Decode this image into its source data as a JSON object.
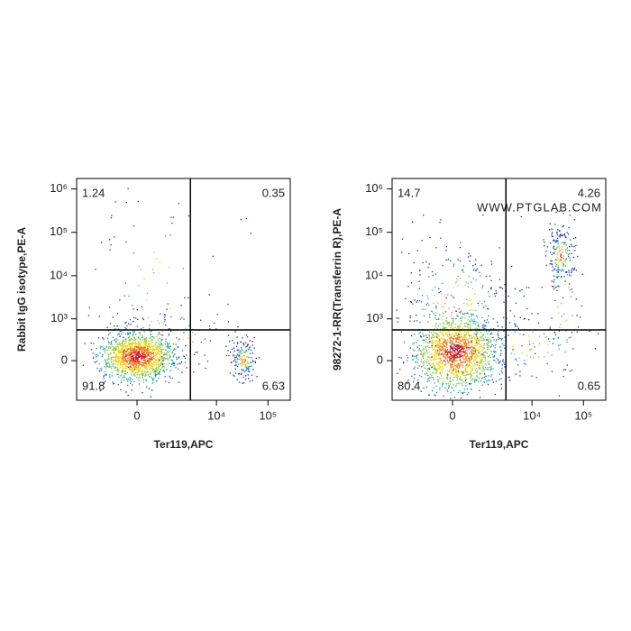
{
  "chart_data": [
    {
      "type": "scatter",
      "xlabel": "Ter119,APC",
      "ylabel": "Rabbit IgG isotype,PE-A",
      "xlim": [
        -4260,
        271000
      ],
      "ylim": [
        -885,
        1740000
      ],
      "xticks": [
        0,
        {
          "value": 10000,
          "label": "10⁴"
        },
        {
          "value": 100000,
          "label": "10⁵"
        }
      ],
      "yticks": [
        0,
        {
          "value": 1000,
          "label": "10³"
        },
        {
          "value": 10000,
          "label": "10⁴"
        },
        {
          "value": 100000,
          "label": "10⁵"
        },
        {
          "value": 1000000,
          "label": "10⁶"
        }
      ],
      "gates": [
        3100,
        540
      ],
      "quadrant_values": [
        1.24,
        0.35,
        91.8,
        6.63
      ]
    },
    {
      "type": "scatter",
      "xlabel": "Ter119,APC",
      "ylabel": "98272-1-RR(Transferrin R),PE-A",
      "xlim": [
        -4260,
        271000
      ],
      "ylim": [
        -885,
        1740000
      ],
      "xticks": [
        0,
        {
          "value": 10000,
          "label": "10⁴"
        },
        {
          "value": 100000,
          "label": "10⁵"
        }
      ],
      "yticks": [
        0,
        {
          "value": 1000,
          "label": "10³"
        },
        {
          "value": 10000,
          "label": "10⁴"
        },
        {
          "value": 100000,
          "label": "10⁵"
        },
        {
          "value": 1000000,
          "label": "10⁶"
        }
      ],
      "gates": [
        3100,
        540
      ],
      "quadrant_values": [
        14.7,
        4.26,
        80.4,
        0.65
      ],
      "watermark": "WWW.PTGLAB.COM"
    }
  ]
}
